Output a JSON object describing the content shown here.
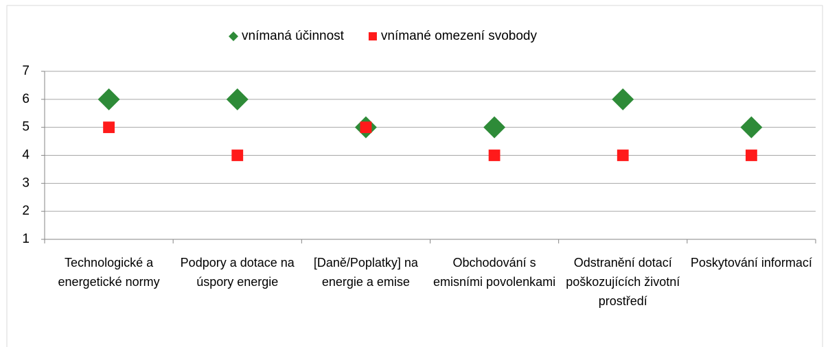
{
  "chart_data": {
    "type": "scatter",
    "categories": [
      "Technologické a energetické normy",
      "Podpory a dotace na úspory energie",
      "[Daně/Poplatky] na energie a emise",
      "Obchodování s emisními povolenkami",
      "Odstranění dotací poškozujících životní prostředí",
      "Poskytování informací"
    ],
    "series": [
      {
        "name": "vnímaná účinnost",
        "color": "#2e8b38",
        "marker": "diamond",
        "values": [
          6,
          6,
          5,
          5,
          6,
          5
        ]
      },
      {
        "name": "vnímané omezení svobody",
        "color": "#ff1a1a",
        "marker": "square",
        "values": [
          5,
          4,
          5,
          4,
          4,
          4
        ]
      }
    ],
    "ylim": [
      1,
      7
    ],
    "yticks": [
      1,
      2,
      3,
      4,
      5,
      6,
      7
    ],
    "grid": true,
    "legend": "top"
  }
}
